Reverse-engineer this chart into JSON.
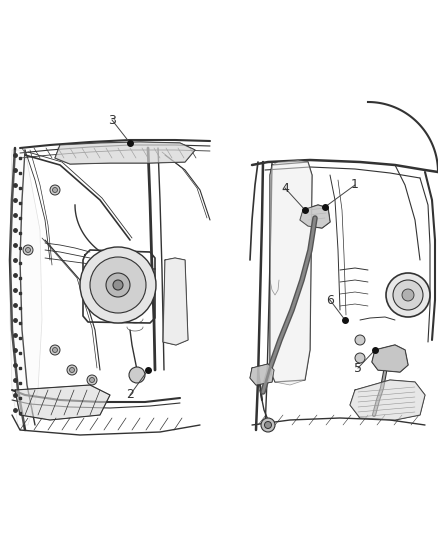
{
  "bg_color": "#ffffff",
  "fig_width": 4.38,
  "fig_height": 5.33,
  "dpi": 100,
  "line_color": "#333333",
  "text_color": "#333333",
  "dot_color": "#111111",
  "font_size": 9,
  "callouts": [
    {
      "num": "1",
      "dot": [
        0.72,
        0.618
      ],
      "label": [
        0.76,
        0.655
      ]
    },
    {
      "num": "2",
      "dot": [
        0.195,
        0.368
      ],
      "label": [
        0.178,
        0.345
      ]
    },
    {
      "num": "3",
      "dot": [
        0.2,
        0.73
      ],
      "label": [
        0.185,
        0.758
      ]
    },
    {
      "num": "4",
      "dot": [
        0.68,
        0.618
      ],
      "label": [
        0.66,
        0.65
      ]
    },
    {
      "num": "5",
      "dot": [
        0.465,
        0.398
      ],
      "label": [
        0.445,
        0.375
      ]
    },
    {
      "num": "6",
      "dot": [
        0.49,
        0.435
      ],
      "label": [
        0.478,
        0.46
      ]
    }
  ]
}
